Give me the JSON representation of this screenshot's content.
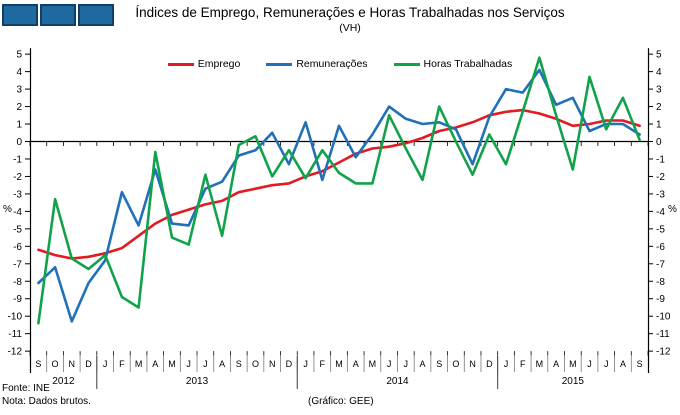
{
  "header": {
    "title": "Índices de Emprego, Remunerações e Horas Trabalhadas nos Serviços",
    "subtitle": "(VH)"
  },
  "legend": {
    "items": [
      {
        "label": "Emprego",
        "color": "#E11B22"
      },
      {
        "label": "Remunerações",
        "color": "#2170B8"
      },
      {
        "label": "Horas Trabalhadas",
        "color": "#12A24B"
      }
    ]
  },
  "footer": {
    "fonte": "Fonte: INE",
    "nota": "Nota: Dados brutos.",
    "grafico": "(Gráfico: GEE)"
  },
  "colors": {
    "axis": "#000000",
    "month_separator": "#7a7a7a",
    "year_separator": "#3a3a3a",
    "logo_fill": "#1E6AA0",
    "logo_border": "#123F66"
  },
  "chart_data": {
    "type": "line",
    "title": "Índices de Emprego, Remunerações e Horas Trabalhadas nos Serviços",
    "subtitle": "(VH)",
    "ylabel": "%",
    "ylim": [
      -12,
      5
    ],
    "y_step": 1,
    "grid": false,
    "legend_position": "top",
    "categories": [
      "S",
      "O",
      "N",
      "D",
      "J",
      "F",
      "M",
      "A",
      "M",
      "J",
      "J",
      "A",
      "S",
      "O",
      "N",
      "D",
      "J",
      "F",
      "M",
      "A",
      "M",
      "J",
      "J",
      "A",
      "S",
      "O",
      "N",
      "D",
      "J",
      "F",
      "M",
      "A",
      "M",
      "J",
      "J",
      "A",
      "S"
    ],
    "year_groups": [
      {
        "label": "2012",
        "from": 0,
        "to": 3
      },
      {
        "label": "2013",
        "from": 4,
        "to": 15
      },
      {
        "label": "2014",
        "from": 16,
        "to": 27
      },
      {
        "label": "2015",
        "from": 28,
        "to": 36
      }
    ],
    "series": [
      {
        "name": "Emprego",
        "color": "#E11B22",
        "values": [
          -6.2,
          -6.5,
          -6.7,
          -6.6,
          -6.4,
          -6.1,
          -5.4,
          -4.7,
          -4.2,
          -3.9,
          -3.6,
          -3.4,
          -2.9,
          -2.7,
          -2.5,
          -2.4,
          -2.0,
          -1.7,
          -1.2,
          -0.7,
          -0.4,
          -0.3,
          -0.1,
          0.2,
          0.6,
          0.8,
          1.1,
          1.5,
          1.7,
          1.8,
          1.6,
          1.3,
          0.9,
          1.0,
          1.2,
          1.2,
          0.9
        ]
      },
      {
        "name": "Remunerações",
        "color": "#2170B8",
        "values": [
          -8.1,
          -7.2,
          -10.3,
          -8.1,
          -6.8,
          -2.9,
          -4.8,
          -1.6,
          -4.7,
          -4.8,
          -2.7,
          -2.3,
          -0.8,
          -0.5,
          0.5,
          -1.3,
          1.1,
          -2.2,
          0.9,
          -0.9,
          0.4,
          2.0,
          1.3,
          1.0,
          1.1,
          0.7,
          -1.3,
          1.4,
          3.0,
          2.8,
          4.1,
          2.1,
          2.5,
          0.6,
          1.0,
          1.0,
          0.4
        ]
      },
      {
        "name": "Horas Trabalhadas",
        "color": "#12A24B",
        "values": [
          -10.4,
          -3.3,
          -6.7,
          -7.3,
          -6.5,
          -8.9,
          -9.5,
          -0.6,
          -5.5,
          -5.9,
          -1.9,
          -5.4,
          -0.2,
          0.3,
          -2.0,
          -0.5,
          -2.1,
          -0.5,
          -1.8,
          -2.4,
          -2.4,
          1.5,
          -0.4,
          -2.2,
          2.0,
          0.0,
          -1.9,
          0.4,
          -1.3,
          1.7,
          4.8,
          1.5,
          -1.6,
          3.7,
          0.7,
          2.5,
          0.1
        ]
      }
    ]
  }
}
